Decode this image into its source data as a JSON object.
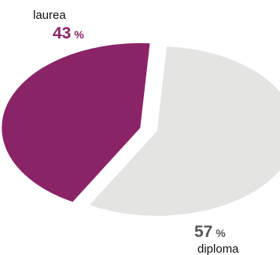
{
  "chart_data": {
    "type": "pie",
    "series": [
      {
        "label": "laurea",
        "value": 43,
        "unit": "%",
        "color": "#8b2467",
        "text_color": "#8b2467"
      },
      {
        "label": "diploma",
        "value": 57,
        "unit": "%",
        "color": "#e4e4e3",
        "text_color": "#575757"
      }
    ]
  }
}
